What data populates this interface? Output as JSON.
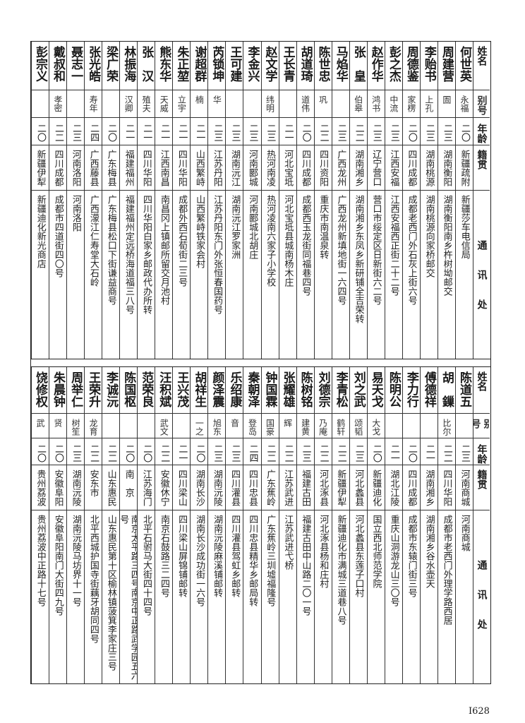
{
  "headers": {
    "name": "姓名",
    "alias": "别号",
    "age": "年龄",
    "origin": "籍贯",
    "address": "通讯处"
  },
  "top_table": [
    {
      "name": "何世英",
      "alias": "永福",
      "age": "二〇",
      "origin": "新疆疏附",
      "address": "新疆莎车电信局"
    },
    {
      "name": "周建营",
      "alias": "圄",
      "age": "二三",
      "origin": "湖南衡阳",
      "address": "湖南衡阳南乡杵树坳邮交"
    },
    {
      "name": "李贻书",
      "alias": "上孔",
      "age": "二三",
      "origin": "湖南桃源",
      "address": "湖南桃源向家桥邮交"
    },
    {
      "name": "周德鉴",
      "alias": "家楞",
      "age": "二〇",
      "origin": "四川成都",
      "address": "成都老西门外石灰上街六号"
    },
    {
      "name": "彭之杰",
      "alias": "中流",
      "age": "二三",
      "origin": "江西安福",
      "address": "江西安福西正街二十二号"
    },
    {
      "name": "赵作华",
      "alias": "鸿书",
      "age": "二三",
      "origin": "辽宁营口",
      "address": "营口市绥定区日新街六二号"
    },
    {
      "name": "张　皇",
      "alias": "伯皋",
      "age": "二二",
      "origin": "湖南湘乡",
      "address": "湖南湘乡东凤乡新研铺全吉荣转"
    },
    {
      "name": "马焰华",
      "alias": "",
      "age": "二三",
      "origin": "广西龙州",
      "address": "广西龙州新填地街一六四号"
    },
    {
      "name": "陈世忠",
      "alias": "巩",
      "age": "二二",
      "origin": "四川资阳",
      "address": "重庆市南温泉转"
    },
    {
      "name": "胡道琦",
      "alias": "道伟",
      "age": "二〇",
      "origin": "四川成都",
      "address": "成都西玉龙街同福巷四号"
    },
    {
      "name": "王长青",
      "alias": "",
      "age": "二一",
      "origin": "河北宝坻",
      "address": "河北宝坻县城南杨木庄"
    },
    {
      "name": "赵文学",
      "alias": "纬明",
      "age": "二三",
      "origin": "热河南凌",
      "address": "热河凌南六家子小学校"
    },
    {
      "name": "李金兴",
      "alias": "",
      "age": "二三",
      "origin": "河南郾城",
      "address": "河南郾城北胡庄"
    },
    {
      "name": "王可建",
      "alias": "",
      "age": "二三",
      "origin": "湖南沅江",
      "address": "湖南沅江罗家洲"
    },
    {
      "name": "芮锁坤",
      "alias": "华",
      "age": "二三",
      "origin": "江苏丹阳",
      "address": "江苏丹阳东门外张恒春国药号"
    },
    {
      "name": "谢超群",
      "alias": "楠",
      "age": "二一",
      "origin": "山西繁峙",
      "address": "山西繁峙铁家会村"
    },
    {
      "name": "朱正堃",
      "alias": "立宇",
      "age": "二一",
      "origin": "四川华阳",
      "address": "成都外西石荀街二三号"
    },
    {
      "name": "熊东华",
      "alias": "天威",
      "age": "二一",
      "origin": "江西南昌",
      "address": "南昌冈上镇邮所留交月池村"
    },
    {
      "name": "张　汉",
      "alias": "殖夫",
      "age": "二一",
      "origin": "四川华阳",
      "address": "四川华阳白家乡邮政代办所转"
    },
    {
      "name": "林振海",
      "alias": "汉卿",
      "age": "二一",
      "origin": "福建福州",
      "address": "福建福州定远桥海道福三八号"
    },
    {
      "name": "梁广荣",
      "alias": "",
      "age": "二〇",
      "origin": "广东梅县",
      "address": "广东梅县松口下街谦益商号"
    },
    {
      "name": "张光皓",
      "alias": "寿年",
      "age": "二四",
      "origin": "广西藤县",
      "address": "广西濛江仁寿堂大石岭"
    },
    {
      "name": "聂志一",
      "alias": "",
      "age": "二三",
      "origin": "河南洛阳",
      "address": "河南洛阳"
    },
    {
      "name": "戴叔和",
      "alias": "孝密",
      "age": "二二",
      "origin": "四川成都",
      "address": "成都市四道街四〇号"
    },
    {
      "name": "彭宗义",
      "alias": "",
      "age": "二〇",
      "origin": "新疆伊犁",
      "address": "新疆迪化新光商店"
    }
  ],
  "bottom_table": [
    {
      "name": "陈道五",
      "alias": "",
      "age": "二三",
      "origin": "河南商城",
      "address": "河南商城"
    },
    {
      "name": "胡　鏁",
      "alias": "比尔",
      "age": "二二",
      "origin": "四川华阳",
      "address": "成都市老西门外理学路西居"
    },
    {
      "name": "傅德祥",
      "alias": "",
      "age": "二一",
      "origin": "湖南湘乡",
      "address": "湖南湘乡谷水壶天"
    },
    {
      "name": "李力行",
      "alias": "",
      "age": "二〇",
      "origin": "四川成都",
      "address": "成都市东辕门街三号"
    },
    {
      "name": "陈明公",
      "alias": "",
      "age": "二一",
      "origin": "湖北江陵",
      "address": "重庆山洞游龙山三〇号"
    },
    {
      "name": "易天戈",
      "alias": "大戈",
      "age": "二〇",
      "origin": "新疆迪化",
      "address": "国立西北师范学院"
    },
    {
      "name": "刘之武",
      "alias": "颂韬",
      "age": "二三",
      "origin": "河北蠡县",
      "address": "河北蠡县东莲子口村"
    },
    {
      "name": "李青松",
      "alias": "鹤轩",
      "age": "二二",
      "origin": "新疆伊犁",
      "address": "新疆迪化市满城三道巷八号"
    },
    {
      "name": "刘德宗",
      "alias": "乃庵",
      "age": "二二",
      "origin": "河北涿县",
      "address": "河北涿县杨和庄村"
    },
    {
      "name": "陈树铭",
      "alias": "建黄",
      "age": "二三",
      "origin": "福建古田",
      "address": "福建古田中山路二〇一号"
    },
    {
      "name": "张耀雄",
      "alias": "辉",
      "age": "二二",
      "origin": "江苏武进",
      "address": "江苏武进弋桥"
    },
    {
      "name": "钟国霖",
      "alias": "国豪",
      "age": "二二",
      "origin": "广东蕉岭",
      "address": "广东蕉岭三圳墟福隆号"
    },
    {
      "name": "秦朝泽",
      "alias": "登岛",
      "age": "二四",
      "origin": "四川忠县",
      "address": "四川忠县精华乡邮局转"
    },
    {
      "name": "乐绍康",
      "alias": "音",
      "age": "二三",
      "origin": "四川灌县",
      "address": "四川灌县驾虹乡邮转"
    },
    {
      "name": "颜泽震",
      "alias": "旭东",
      "age": "二三",
      "origin": "湖南沅陵",
      "address": "湖南沅陵麻溪铺邮转"
    },
    {
      "name": "胡祥生",
      "alias": "一之",
      "age": "二〇",
      "origin": "湖南长沙",
      "address": "湖南长沙成功街一六号"
    },
    {
      "name": "王兴茂",
      "alias": "",
      "age": "二一",
      "origin": "四川梁山",
      "address": "四川梁山屏锦铺邮转"
    },
    {
      "name": "汪积斌",
      "alias": "武文",
      "age": "二二",
      "origin": "安徽休宁",
      "address": "南京石鼓路三二四号"
    },
    {
      "name": "范荣良",
      "alias": "",
      "age": "二〇",
      "origin": "江苏海门",
      "address": "北平石驸马大街四十四号"
    },
    {
      "name": "陈国枢",
      "alias": "",
      "age": "二〇",
      "origin": "南　京",
      "address": "南京太平路三四号南京中正路武学园五六号"
    },
    {
      "name": "李诚沅",
      "alias": "",
      "age": "二二",
      "origin": "山东惠民",
      "address": "山东惠民第十区榆林镇菠箕李家庄三号"
    },
    {
      "name": "王荣升",
      "alias": "龙育",
      "age": "二二",
      "origin": "安东市",
      "address": "北平西城护国寺街藕牙胡同四号"
    },
    {
      "name": "周举仁",
      "alias": "树笙",
      "age": "二三",
      "origin": "湖南沅陵",
      "address": "湖南沅陵马坊界十一号"
    },
    {
      "name": "朱晨钟",
      "alias": "贤",
      "age": "二〇",
      "origin": "安徽阜阳",
      "address": "安徽阜阳南门大街四九号"
    },
    {
      "name": "饶修权",
      "alias": "武",
      "age": "二〇",
      "origin": "贵州荔波",
      "address": "贵州荔波中正路十七号"
    }
  ],
  "page_number": "I628"
}
